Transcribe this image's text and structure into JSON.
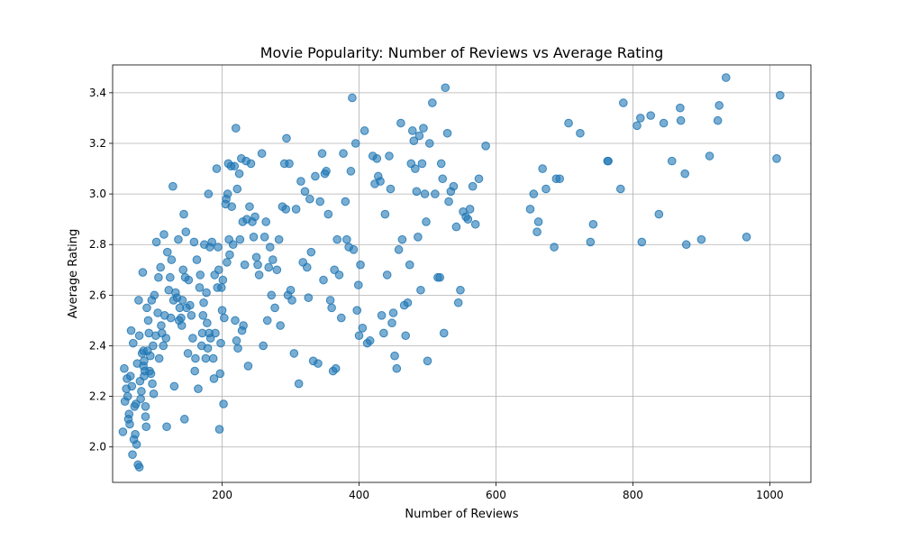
{
  "chart_data": {
    "type": "scatter",
    "title": "Movie Popularity: Number of Reviews vs Average Rating",
    "xlabel": "Number of Reviews",
    "ylabel": "Average Rating",
    "xlim": [
      40,
      1060
    ],
    "ylim": [
      1.86,
      3.51
    ],
    "xticks": [
      200,
      400,
      600,
      800,
      1000
    ],
    "yticks": [
      2.0,
      2.2,
      2.4,
      2.6,
      2.8,
      3.0,
      3.2,
      3.4
    ],
    "xtick_labels": [
      "200",
      "400",
      "600",
      "800",
      "1000"
    ],
    "ytick_labels": [
      "2.0",
      "2.2",
      "2.4",
      "2.6",
      "2.8",
      "3.0",
      "3.2",
      "3.4"
    ],
    "grid": true,
    "legend": "none",
    "marker_color": "#1f77b4",
    "marker_alpha": 0.6,
    "points": [
      [
        57,
        2.31
      ],
      [
        60,
        2.23
      ],
      [
        62,
        2.2
      ],
      [
        64,
        2.13
      ],
      [
        65,
        2.09
      ],
      [
        66,
        2.28
      ],
      [
        67,
        2.46
      ],
      [
        68,
        2.24
      ],
      [
        70,
        2.41
      ],
      [
        72,
        2.16
      ],
      [
        73,
        2.05
      ],
      [
        75,
        2.01
      ],
      [
        76,
        2.33
      ],
      [
        78,
        2.58
      ],
      [
        79,
        2.44
      ],
      [
        80,
        2.26
      ],
      [
        82,
        2.22
      ],
      [
        84,
        2.69
      ],
      [
        85,
        2.38
      ],
      [
        86,
        2.34
      ],
      [
        87,
        2.3
      ],
      [
        88,
        2.12
      ],
      [
        89,
        2.08
      ],
      [
        90,
        2.55
      ],
      [
        92,
        2.5
      ],
      [
        93,
        2.45
      ],
      [
        95,
        2.36
      ],
      [
        96,
        2.29
      ],
      [
        98,
        2.25
      ],
      [
        100,
        2.21
      ],
      [
        55,
        2.06
      ],
      [
        58,
        2.18
      ],
      [
        61,
        2.27
      ],
      [
        63,
        2.11
      ],
      [
        69,
        1.97
      ],
      [
        71,
        2.03
      ],
      [
        74,
        2.17
      ],
      [
        77,
        1.93
      ],
      [
        79,
        1.92
      ],
      [
        81,
        2.19
      ],
      [
        83,
        2.37
      ],
      [
        85,
        2.32
      ],
      [
        86,
        2.28
      ],
      [
        88,
        2.16
      ],
      [
        91,
        2.38
      ],
      [
        94,
        2.3
      ],
      [
        97,
        2.58
      ],
      [
        99,
        2.4
      ],
      [
        101,
        2.6
      ],
      [
        103,
        2.44
      ],
      [
        104,
        2.81
      ],
      [
        106,
        2.53
      ],
      [
        107,
        2.67
      ],
      [
        108,
        2.35
      ],
      [
        110,
        2.71
      ],
      [
        111,
        2.48
      ],
      [
        112,
        2.45
      ],
      [
        114,
        2.4
      ],
      [
        115,
        2.84
      ],
      [
        116,
        2.52
      ],
      [
        118,
        2.43
      ],
      [
        119,
        2.08
      ],
      [
        120,
        2.77
      ],
      [
        122,
        2.62
      ],
      [
        124,
        2.67
      ],
      [
        125,
        2.51
      ],
      [
        126,
        2.74
      ],
      [
        128,
        3.03
      ],
      [
        129,
        2.58
      ],
      [
        130,
        2.24
      ],
      [
        132,
        2.61
      ],
      [
        134,
        2.59
      ],
      [
        136,
        2.82
      ],
      [
        137,
        2.5
      ],
      [
        138,
        2.55
      ],
      [
        140,
        2.51
      ],
      [
        141,
        2.48
      ],
      [
        142,
        2.58
      ],
      [
        143,
        2.7
      ],
      [
        144,
        2.92
      ],
      [
        145,
        2.11
      ],
      [
        146,
        2.67
      ],
      [
        147,
        2.85
      ],
      [
        148,
        2.55
      ],
      [
        150,
        2.37
      ],
      [
        151,
        2.66
      ],
      [
        153,
        2.56
      ],
      [
        155,
        2.52
      ],
      [
        157,
        2.43
      ],
      [
        159,
        2.81
      ],
      [
        160,
        2.3
      ],
      [
        161,
        2.35
      ],
      [
        163,
        2.74
      ],
      [
        165,
        2.23
      ],
      [
        167,
        2.63
      ],
      [
        168,
        2.68
      ],
      [
        170,
        2.4
      ],
      [
        171,
        2.45
      ],
      [
        172,
        2.52
      ],
      [
        173,
        2.57
      ],
      [
        174,
        2.8
      ],
      [
        176,
        2.35
      ],
      [
        177,
        2.61
      ],
      [
        178,
        2.49
      ],
      [
        179,
        2.39
      ],
      [
        180,
        3.0
      ],
      [
        181,
        2.45
      ],
      [
        182,
        2.79
      ],
      [
        183,
        2.43
      ],
      [
        185,
        2.81
      ],
      [
        187,
        2.35
      ],
      [
        188,
        2.27
      ],
      [
        189,
        2.68
      ],
      [
        190,
        2.45
      ],
      [
        192,
        3.1
      ],
      [
        193,
        2.63
      ],
      [
        194,
        2.79
      ],
      [
        195,
        2.7
      ],
      [
        196,
        2.07
      ],
      [
        197,
        2.29
      ],
      [
        198,
        2.41
      ],
      [
        199,
        2.63
      ],
      [
        200,
        2.54
      ],
      [
        201,
        2.66
      ],
      [
        202,
        2.17
      ],
      [
        203,
        2.51
      ],
      [
        205,
        2.96
      ],
      [
        206,
        2.98
      ],
      [
        207,
        2.73
      ],
      [
        208,
        3.0
      ],
      [
        209,
        3.12
      ],
      [
        210,
        2.82
      ],
      [
        211,
        2.76
      ],
      [
        213,
        3.11
      ],
      [
        214,
        2.95
      ],
      [
        216,
        2.8
      ],
      [
        218,
        3.11
      ],
      [
        219,
        2.5
      ],
      [
        220,
        3.26
      ],
      [
        221,
        2.42
      ],
      [
        222,
        3.02
      ],
      [
        223,
        2.39
      ],
      [
        225,
        3.08
      ],
      [
        226,
        2.82
      ],
      [
        228,
        3.14
      ],
      [
        229,
        2.46
      ],
      [
        230,
        2.89
      ],
      [
        231,
        2.48
      ],
      [
        233,
        2.72
      ],
      [
        235,
        3.13
      ],
      [
        236,
        2.9
      ],
      [
        238,
        2.32
      ],
      [
        240,
        2.95
      ],
      [
        242,
        3.12
      ],
      [
        244,
        2.89
      ],
      [
        246,
        2.83
      ],
      [
        248,
        2.91
      ],
      [
        250,
        2.75
      ],
      [
        252,
        2.72
      ],
      [
        254,
        2.68
      ],
      [
        258,
        3.16
      ],
      [
        260,
        2.4
      ],
      [
        262,
        2.83
      ],
      [
        264,
        2.89
      ],
      [
        266,
        2.5
      ],
      [
        268,
        2.71
      ],
      [
        270,
        2.79
      ],
      [
        272,
        2.6
      ],
      [
        274,
        2.74
      ],
      [
        277,
        2.55
      ],
      [
        280,
        2.7
      ],
      [
        283,
        2.82
      ],
      [
        285,
        2.48
      ],
      [
        288,
        2.95
      ],
      [
        291,
        3.12
      ],
      [
        293,
        2.94
      ],
      [
        294,
        3.22
      ],
      [
        296,
        2.6
      ],
      [
        298,
        3.12
      ],
      [
        300,
        2.62
      ],
      [
        302,
        2.58
      ],
      [
        305,
        2.37
      ],
      [
        308,
        2.94
      ],
      [
        312,
        2.25
      ],
      [
        315,
        3.05
      ],
      [
        318,
        2.73
      ],
      [
        321,
        3.01
      ],
      [
        324,
        2.71
      ],
      [
        326,
        2.59
      ],
      [
        328,
        2.98
      ],
      [
        330,
        2.77
      ],
      [
        333,
        2.34
      ],
      [
        336,
        3.07
      ],
      [
        340,
        2.33
      ],
      [
        343,
        2.97
      ],
      [
        346,
        3.16
      ],
      [
        348,
        2.66
      ],
      [
        350,
        3.08
      ],
      [
        352,
        3.09
      ],
      [
        355,
        2.92
      ],
      [
        358,
        2.58
      ],
      [
        360,
        2.55
      ],
      [
        362,
        2.3
      ],
      [
        364,
        2.7
      ],
      [
        366,
        2.31
      ],
      [
        368,
        2.82
      ],
      [
        371,
        2.68
      ],
      [
        374,
        2.51
      ],
      [
        377,
        3.16
      ],
      [
        380,
        2.97
      ],
      [
        382,
        2.82
      ],
      [
        385,
        2.79
      ],
      [
        388,
        3.09
      ],
      [
        390,
        3.38
      ],
      [
        392,
        2.78
      ],
      [
        395,
        3.2
      ],
      [
        397,
        2.54
      ],
      [
        399,
        2.64
      ],
      [
        400,
        2.44
      ],
      [
        402,
        2.72
      ],
      [
        405,
        2.47
      ],
      [
        408,
        3.25
      ],
      [
        412,
        2.41
      ],
      [
        416,
        2.42
      ],
      [
        420,
        3.15
      ],
      [
        423,
        3.04
      ],
      [
        426,
        3.14
      ],
      [
        428,
        3.07
      ],
      [
        431,
        3.05
      ],
      [
        433,
        2.52
      ],
      [
        436,
        2.45
      ],
      [
        438,
        2.92
      ],
      [
        441,
        2.68
      ],
      [
        444,
        3.15
      ],
      [
        446,
        3.02
      ],
      [
        448,
        2.49
      ],
      [
        450,
        2.53
      ],
      [
        452,
        2.36
      ],
      [
        455,
        2.31
      ],
      [
        458,
        2.78
      ],
      [
        461,
        3.28
      ],
      [
        463,
        2.82
      ],
      [
        466,
        2.56
      ],
      [
        468,
        2.44
      ],
      [
        471,
        2.57
      ],
      [
        474,
        2.72
      ],
      [
        476,
        3.12
      ],
      [
        478,
        3.25
      ],
      [
        480,
        3.21
      ],
      [
        482,
        3.1
      ],
      [
        484,
        3.01
      ],
      [
        486,
        2.83
      ],
      [
        488,
        3.23
      ],
      [
        490,
        2.62
      ],
      [
        492,
        3.12
      ],
      [
        494,
        3.26
      ],
      [
        496,
        3.0
      ],
      [
        498,
        2.89
      ],
      [
        500,
        2.34
      ],
      [
        503,
        3.2
      ],
      [
        507,
        3.36
      ],
      [
        511,
        3.0
      ],
      [
        515,
        2.67
      ],
      [
        518,
        2.67
      ],
      [
        520,
        3.12
      ],
      [
        522,
        3.06
      ],
      [
        524,
        2.45
      ],
      [
        526,
        3.42
      ],
      [
        529,
        3.24
      ],
      [
        531,
        2.97
      ],
      [
        534,
        3.01
      ],
      [
        538,
        3.03
      ],
      [
        542,
        2.87
      ],
      [
        545,
        2.57
      ],
      [
        548,
        2.62
      ],
      [
        552,
        2.93
      ],
      [
        556,
        2.91
      ],
      [
        559,
        2.9
      ],
      [
        562,
        2.94
      ],
      [
        566,
        3.03
      ],
      [
        570,
        2.88
      ],
      [
        575,
        3.06
      ],
      [
        585,
        3.19
      ],
      [
        650,
        2.94
      ],
      [
        655,
        3.0
      ],
      [
        660,
        2.85
      ],
      [
        662,
        2.89
      ],
      [
        668,
        3.1
      ],
      [
        673,
        3.02
      ],
      [
        685,
        2.79
      ],
      [
        688,
        3.06
      ],
      [
        693,
        3.06
      ],
      [
        706,
        3.28
      ],
      [
        723,
        3.24
      ],
      [
        738,
        2.81
      ],
      [
        742,
        2.88
      ],
      [
        763,
        3.13
      ],
      [
        764,
        3.13
      ],
      [
        782,
        3.02
      ],
      [
        786,
        3.36
      ],
      [
        806,
        3.27
      ],
      [
        811,
        3.3
      ],
      [
        813,
        2.81
      ],
      [
        826,
        3.31
      ],
      [
        838,
        2.92
      ],
      [
        845,
        3.28
      ],
      [
        857,
        3.13
      ],
      [
        869,
        3.34
      ],
      [
        870,
        3.29
      ],
      [
        876,
        3.08
      ],
      [
        878,
        2.8
      ],
      [
        900,
        2.82
      ],
      [
        912,
        3.15
      ],
      [
        924,
        3.29
      ],
      [
        926,
        3.35
      ],
      [
        936,
        3.46
      ],
      [
        966,
        2.83
      ],
      [
        1010,
        3.14
      ],
      [
        1015,
        3.39
      ]
    ]
  }
}
